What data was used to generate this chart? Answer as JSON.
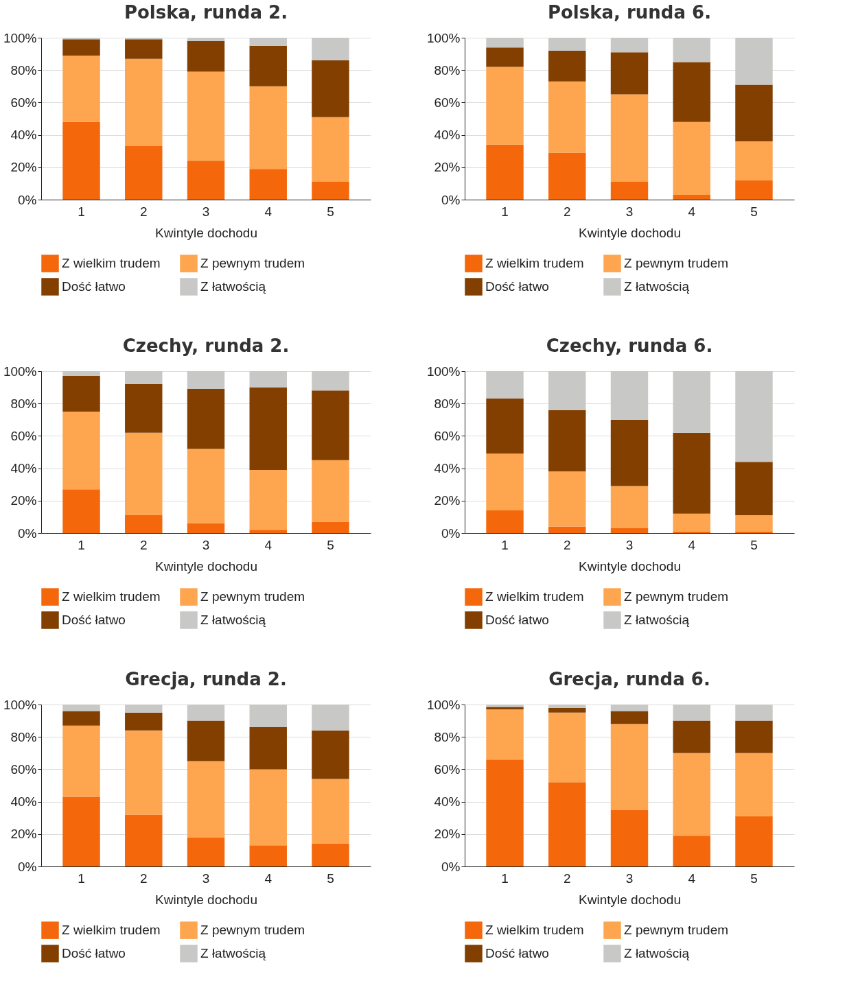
{
  "chart_data": [
    {
      "type": "bar",
      "title": "Polska, runda 2.",
      "xlabel": "Kwintyle dochodu",
      "categories": [
        "1",
        "2",
        "3",
        "4",
        "5"
      ],
      "stacked": true,
      "ylim": [
        0,
        100
      ],
      "yticks": [
        {
          "value": 0,
          "label": "0%"
        },
        {
          "value": 20,
          "label": "20%"
        },
        {
          "value": 40,
          "label": "40%"
        },
        {
          "value": 60,
          "label": "60%"
        },
        {
          "value": 80,
          "label": "80%"
        },
        {
          "value": 100,
          "label": "100%"
        }
      ],
      "grid": "y",
      "legend": "bottom",
      "series": [
        {
          "name": "Z wielkim trudem",
          "color": "#f4680b",
          "values": [
            48,
            33,
            24,
            19,
            11
          ]
        },
        {
          "name": "Z pewnym trudem",
          "color": "#fea550",
          "values": [
            41,
            54,
            55,
            51,
            40
          ]
        },
        {
          "name": "Dość łatwo",
          "color": "#823f00",
          "values": [
            10,
            12,
            19,
            25,
            35
          ]
        },
        {
          "name": "Z łatwością",
          "color": "#c8c8c6",
          "values": [
            1,
            1,
            2,
            5,
            14
          ]
        }
      ]
    },
    {
      "type": "bar",
      "title": "Polska, runda 6.",
      "xlabel": "Kwintyle dochodu",
      "categories": [
        "1",
        "2",
        "3",
        "4",
        "5"
      ],
      "stacked": true,
      "ylim": [
        0,
        100
      ],
      "yticks": [
        {
          "value": 0,
          "label": "0%"
        },
        {
          "value": 20,
          "label": "20%"
        },
        {
          "value": 40,
          "label": "40%"
        },
        {
          "value": 60,
          "label": "60%"
        },
        {
          "value": 80,
          "label": "80%"
        },
        {
          "value": 100,
          "label": "100%"
        }
      ],
      "grid": "y",
      "legend": "bottom",
      "series": [
        {
          "name": "Z wielkim trudem",
          "color": "#f4680b",
          "values": [
            34,
            29,
            11,
            3,
            12
          ]
        },
        {
          "name": "Z pewnym trudem",
          "color": "#fea550",
          "values": [
            48,
            44,
            54,
            45,
            24
          ]
        },
        {
          "name": "Dość łatwo",
          "color": "#823f00",
          "values": [
            12,
            19,
            26,
            37,
            35
          ]
        },
        {
          "name": "Z łatwością",
          "color": "#c8c8c6",
          "values": [
            6,
            8,
            9,
            15,
            29
          ]
        }
      ]
    },
    {
      "type": "bar",
      "title": "Czechy, runda 2.",
      "xlabel": "Kwintyle dochodu",
      "categories": [
        "1",
        "2",
        "3",
        "4",
        "5"
      ],
      "stacked": true,
      "ylim": [
        0,
        100
      ],
      "yticks": [
        {
          "value": 0,
          "label": "0%"
        },
        {
          "value": 20,
          "label": "20%"
        },
        {
          "value": 40,
          "label": "40%"
        },
        {
          "value": 60,
          "label": "60%"
        },
        {
          "value": 80,
          "label": "80%"
        },
        {
          "value": 100,
          "label": "100%"
        }
      ],
      "grid": "y",
      "legend": "bottom",
      "series": [
        {
          "name": "Z wielkim trudem",
          "color": "#f4680b",
          "values": [
            27,
            11,
            6,
            2,
            7
          ]
        },
        {
          "name": "Z pewnym trudem",
          "color": "#fea550",
          "values": [
            48,
            51,
            46,
            37,
            38
          ]
        },
        {
          "name": "Dość łatwo",
          "color": "#823f00",
          "values": [
            22,
            30,
            37,
            51,
            43
          ]
        },
        {
          "name": "Z łatwością",
          "color": "#c8c8c6",
          "values": [
            3,
            8,
            11,
            10,
            12
          ]
        }
      ]
    },
    {
      "type": "bar",
      "title": "Czechy, runda 6.",
      "xlabel": "Kwintyle dochodu",
      "categories": [
        "1",
        "2",
        "3",
        "4",
        "5"
      ],
      "stacked": true,
      "ylim": [
        0,
        100
      ],
      "yticks": [
        {
          "value": 0,
          "label": "0%"
        },
        {
          "value": 20,
          "label": "20%"
        },
        {
          "value": 40,
          "label": "40%"
        },
        {
          "value": 60,
          "label": "60%"
        },
        {
          "value": 80,
          "label": "80%"
        },
        {
          "value": 100,
          "label": "100%"
        }
      ],
      "grid": "y",
      "legend": "bottom",
      "series": [
        {
          "name": "Z wielkim trudem",
          "color": "#f4680b",
          "values": [
            14,
            4,
            3,
            1,
            1
          ]
        },
        {
          "name": "Z pewnym trudem",
          "color": "#fea550",
          "values": [
            35,
            34,
            26,
            11,
            10
          ]
        },
        {
          "name": "Dość łatwo",
          "color": "#823f00",
          "values": [
            34,
            38,
            41,
            50,
            33
          ]
        },
        {
          "name": "Z łatwością",
          "color": "#c8c8c6",
          "values": [
            17,
            24,
            30,
            38,
            56
          ]
        }
      ]
    },
    {
      "type": "bar",
      "title": "Grecja, runda 2.",
      "xlabel": "Kwintyle dochodu",
      "categories": [
        "1",
        "2",
        "3",
        "4",
        "5"
      ],
      "stacked": true,
      "ylim": [
        0,
        100
      ],
      "yticks": [
        {
          "value": 0,
          "label": "0%"
        },
        {
          "value": 20,
          "label": "20%"
        },
        {
          "value": 40,
          "label": "40%"
        },
        {
          "value": 60,
          "label": "60%"
        },
        {
          "value": 80,
          "label": "80%"
        },
        {
          "value": 100,
          "label": "100%"
        }
      ],
      "grid": "y",
      "legend": "bottom",
      "series": [
        {
          "name": "Z wielkim trudem",
          "color": "#f4680b",
          "values": [
            43,
            32,
            18,
            13,
            14
          ]
        },
        {
          "name": "Z pewnym trudem",
          "color": "#fea550",
          "values": [
            44,
            52,
            47,
            47,
            40
          ]
        },
        {
          "name": "Dość łatwo",
          "color": "#823f00",
          "values": [
            9,
            11,
            25,
            26,
            30
          ]
        },
        {
          "name": "Z łatwością",
          "color": "#c8c8c6",
          "values": [
            4,
            5,
            10,
            14,
            16
          ]
        }
      ]
    },
    {
      "type": "bar",
      "title": "Grecja, runda 6.",
      "xlabel": "Kwintyle dochodu",
      "categories": [
        "1",
        "2",
        "3",
        "4",
        "5"
      ],
      "stacked": true,
      "ylim": [
        0,
        100
      ],
      "yticks": [
        {
          "value": 0,
          "label": "0%"
        },
        {
          "value": 20,
          "label": "20%"
        },
        {
          "value": 40,
          "label": "40%"
        },
        {
          "value": 60,
          "label": "60%"
        },
        {
          "value": 80,
          "label": "80%"
        },
        {
          "value": 100,
          "label": "100%"
        }
      ],
      "grid": "y",
      "legend": "bottom",
      "series": [
        {
          "name": "Z wielkim trudem",
          "color": "#f4680b",
          "values": [
            66,
            52,
            35,
            19,
            31
          ]
        },
        {
          "name": "Z pewnym trudem",
          "color": "#fea550",
          "values": [
            31,
            43,
            53,
            51,
            39
          ]
        },
        {
          "name": "Dość łatwo",
          "color": "#823f00",
          "values": [
            1.5,
            3,
            8,
            20,
            20
          ]
        },
        {
          "name": "Z łatwością",
          "color": "#c8c8c6",
          "values": [
            1.5,
            2,
            4,
            10,
            10
          ]
        }
      ]
    }
  ]
}
